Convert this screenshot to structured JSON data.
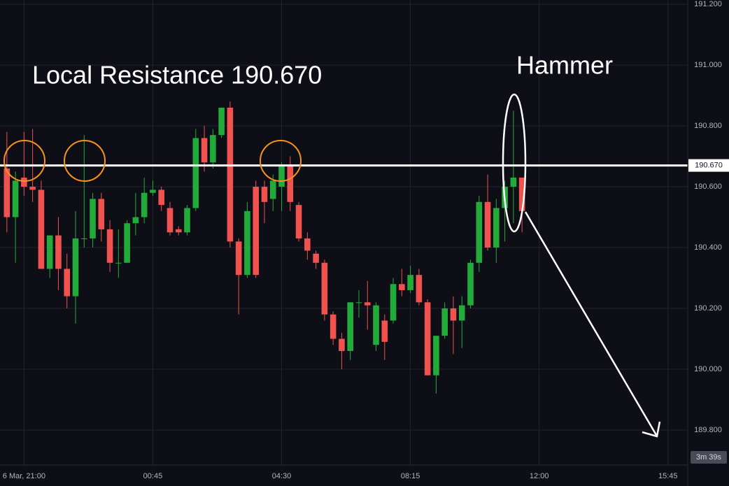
{
  "chart_data": {
    "type": "candlestick",
    "annotations": {
      "resistance": "Local Resistance 190.670",
      "pattern": "Hammer"
    },
    "price_line": {
      "value": 190.67,
      "label": "190.670"
    },
    "countdown": "3m 39s",
    "up_color": "#22ab3a",
    "down_color": "#f0524f",
    "open": [
      190.66,
      190.5,
      190.63,
      190.6,
      190.59,
      190.33,
      190.44,
      190.33,
      190.24,
      190.43,
      190.43,
      190.56,
      190.46,
      190.35,
      190.35,
      190.48,
      190.5,
      190.58,
      190.59,
      190.53,
      190.46,
      190.45,
      190.53,
      190.76,
      190.68,
      190.77,
      190.86,
      190.42,
      190.31,
      190.6,
      190.6,
      190.56,
      190.6,
      190.67,
      190.54,
      190.43,
      190.38,
      190.35,
      190.18,
      190.1,
      190.06,
      190.22,
      190.22,
      190.08,
      190.16,
      190.16,
      190.28,
      190.26,
      190.31,
      190.22,
      189.98,
      190.11,
      190.2,
      190.16,
      190.21,
      190.35,
      190.55,
      190.4,
      190.53,
      190.6,
      190.63
    ],
    "high": [
      190.78,
      190.65,
      190.78,
      190.79,
      190.62,
      190.44,
      190.5,
      190.38,
      190.52,
      190.77,
      190.58,
      190.58,
      190.49,
      190.46,
      190.49,
      190.58,
      190.63,
      190.62,
      190.6,
      190.55,
      190.47,
      190.54,
      190.79,
      190.8,
      190.79,
      190.86,
      190.88,
      190.43,
      190.55,
      190.62,
      190.62,
      190.64,
      190.68,
      190.7,
      190.55,
      190.45,
      190.39,
      190.36,
      190.19,
      190.12,
      190.22,
      190.26,
      190.29,
      190.22,
      190.18,
      190.3,
      190.33,
      190.34,
      190.33,
      190.23,
      190.11,
      190.22,
      190.24,
      190.24,
      190.36,
      190.57,
      190.64,
      190.56,
      190.62,
      190.85,
      190.63
    ],
    "low": [
      190.45,
      190.35,
      190.57,
      190.55,
      190.33,
      190.3,
      190.26,
      190.2,
      190.15,
      190.4,
      190.4,
      190.42,
      190.32,
      190.3,
      190.35,
      190.44,
      190.48,
      190.57,
      190.52,
      190.44,
      190.44,
      190.44,
      190.52,
      190.65,
      190.66,
      190.76,
      190.4,
      190.18,
      190.3,
      190.3,
      190.48,
      190.52,
      190.52,
      190.52,
      190.42,
      190.36,
      190.33,
      190.16,
      190.08,
      190.0,
      190.03,
      190.17,
      190.13,
      190.06,
      190.03,
      190.15,
      190.24,
      190.25,
      190.21,
      189.98,
      189.92,
      190.1,
      190.05,
      190.07,
      190.2,
      190.32,
      190.39,
      190.35,
      190.42,
      190.48,
      190.45
    ],
    "close": [
      190.5,
      190.62,
      190.6,
      190.59,
      190.33,
      190.44,
      190.33,
      190.24,
      190.43,
      190.43,
      190.56,
      190.46,
      190.35,
      190.35,
      190.48,
      190.5,
      190.58,
      190.59,
      190.54,
      190.45,
      190.45,
      190.53,
      190.76,
      190.68,
      190.77,
      190.86,
      190.42,
      190.31,
      190.52,
      190.31,
      190.55,
      190.62,
      190.67,
      190.55,
      190.43,
      190.39,
      190.35,
      190.18,
      190.1,
      190.06,
      190.22,
      190.22,
      190.21,
      190.21,
      190.09,
      190.28,
      190.26,
      190.31,
      190.22,
      189.98,
      190.11,
      190.2,
      190.16,
      190.21,
      190.35,
      190.55,
      190.4,
      190.53,
      190.6,
      190.63,
      190.52
    ],
    "xlim": [
      -0.8,
      79.3
    ],
    "xticks": [
      {
        "value": 2,
        "label": "6 Mar, 21:00"
      },
      {
        "value": 17,
        "label": "00:45"
      },
      {
        "value": 32,
        "label": "04:30"
      },
      {
        "value": 47,
        "label": "08:15"
      },
      {
        "value": 62,
        "label": "12:00"
      },
      {
        "value": 77,
        "label": "15:45"
      }
    ],
    "ylim": [
      189.685,
      191.214
    ],
    "yticks": [
      {
        "value": 189.8,
        "label": "189.800"
      },
      {
        "value": 190.0,
        "label": "190.000"
      },
      {
        "value": 190.2,
        "label": "190.200"
      },
      {
        "value": 190.4,
        "label": "190.400"
      },
      {
        "value": 190.6,
        "label": "190.600"
      },
      {
        "value": 190.8,
        "label": "190.800"
      },
      {
        "value": 191.0,
        "label": "191.000"
      },
      {
        "value": 191.2,
        "label": "191.200"
      }
    ],
    "grid": true
  }
}
